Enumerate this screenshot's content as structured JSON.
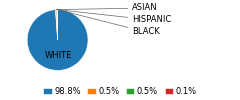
{
  "chart_data": {
    "type": "pie",
    "categories": [
      "WHITE",
      "ASIAN",
      "HISPANIC",
      "BLACK"
    ],
    "values": [
      98.8,
      0.5,
      0.5,
      0.1
    ],
    "value_labels": [
      "98.8%",
      "0.5%",
      "0.5%",
      "0.1%"
    ],
    "legend": "lower center"
  }
}
